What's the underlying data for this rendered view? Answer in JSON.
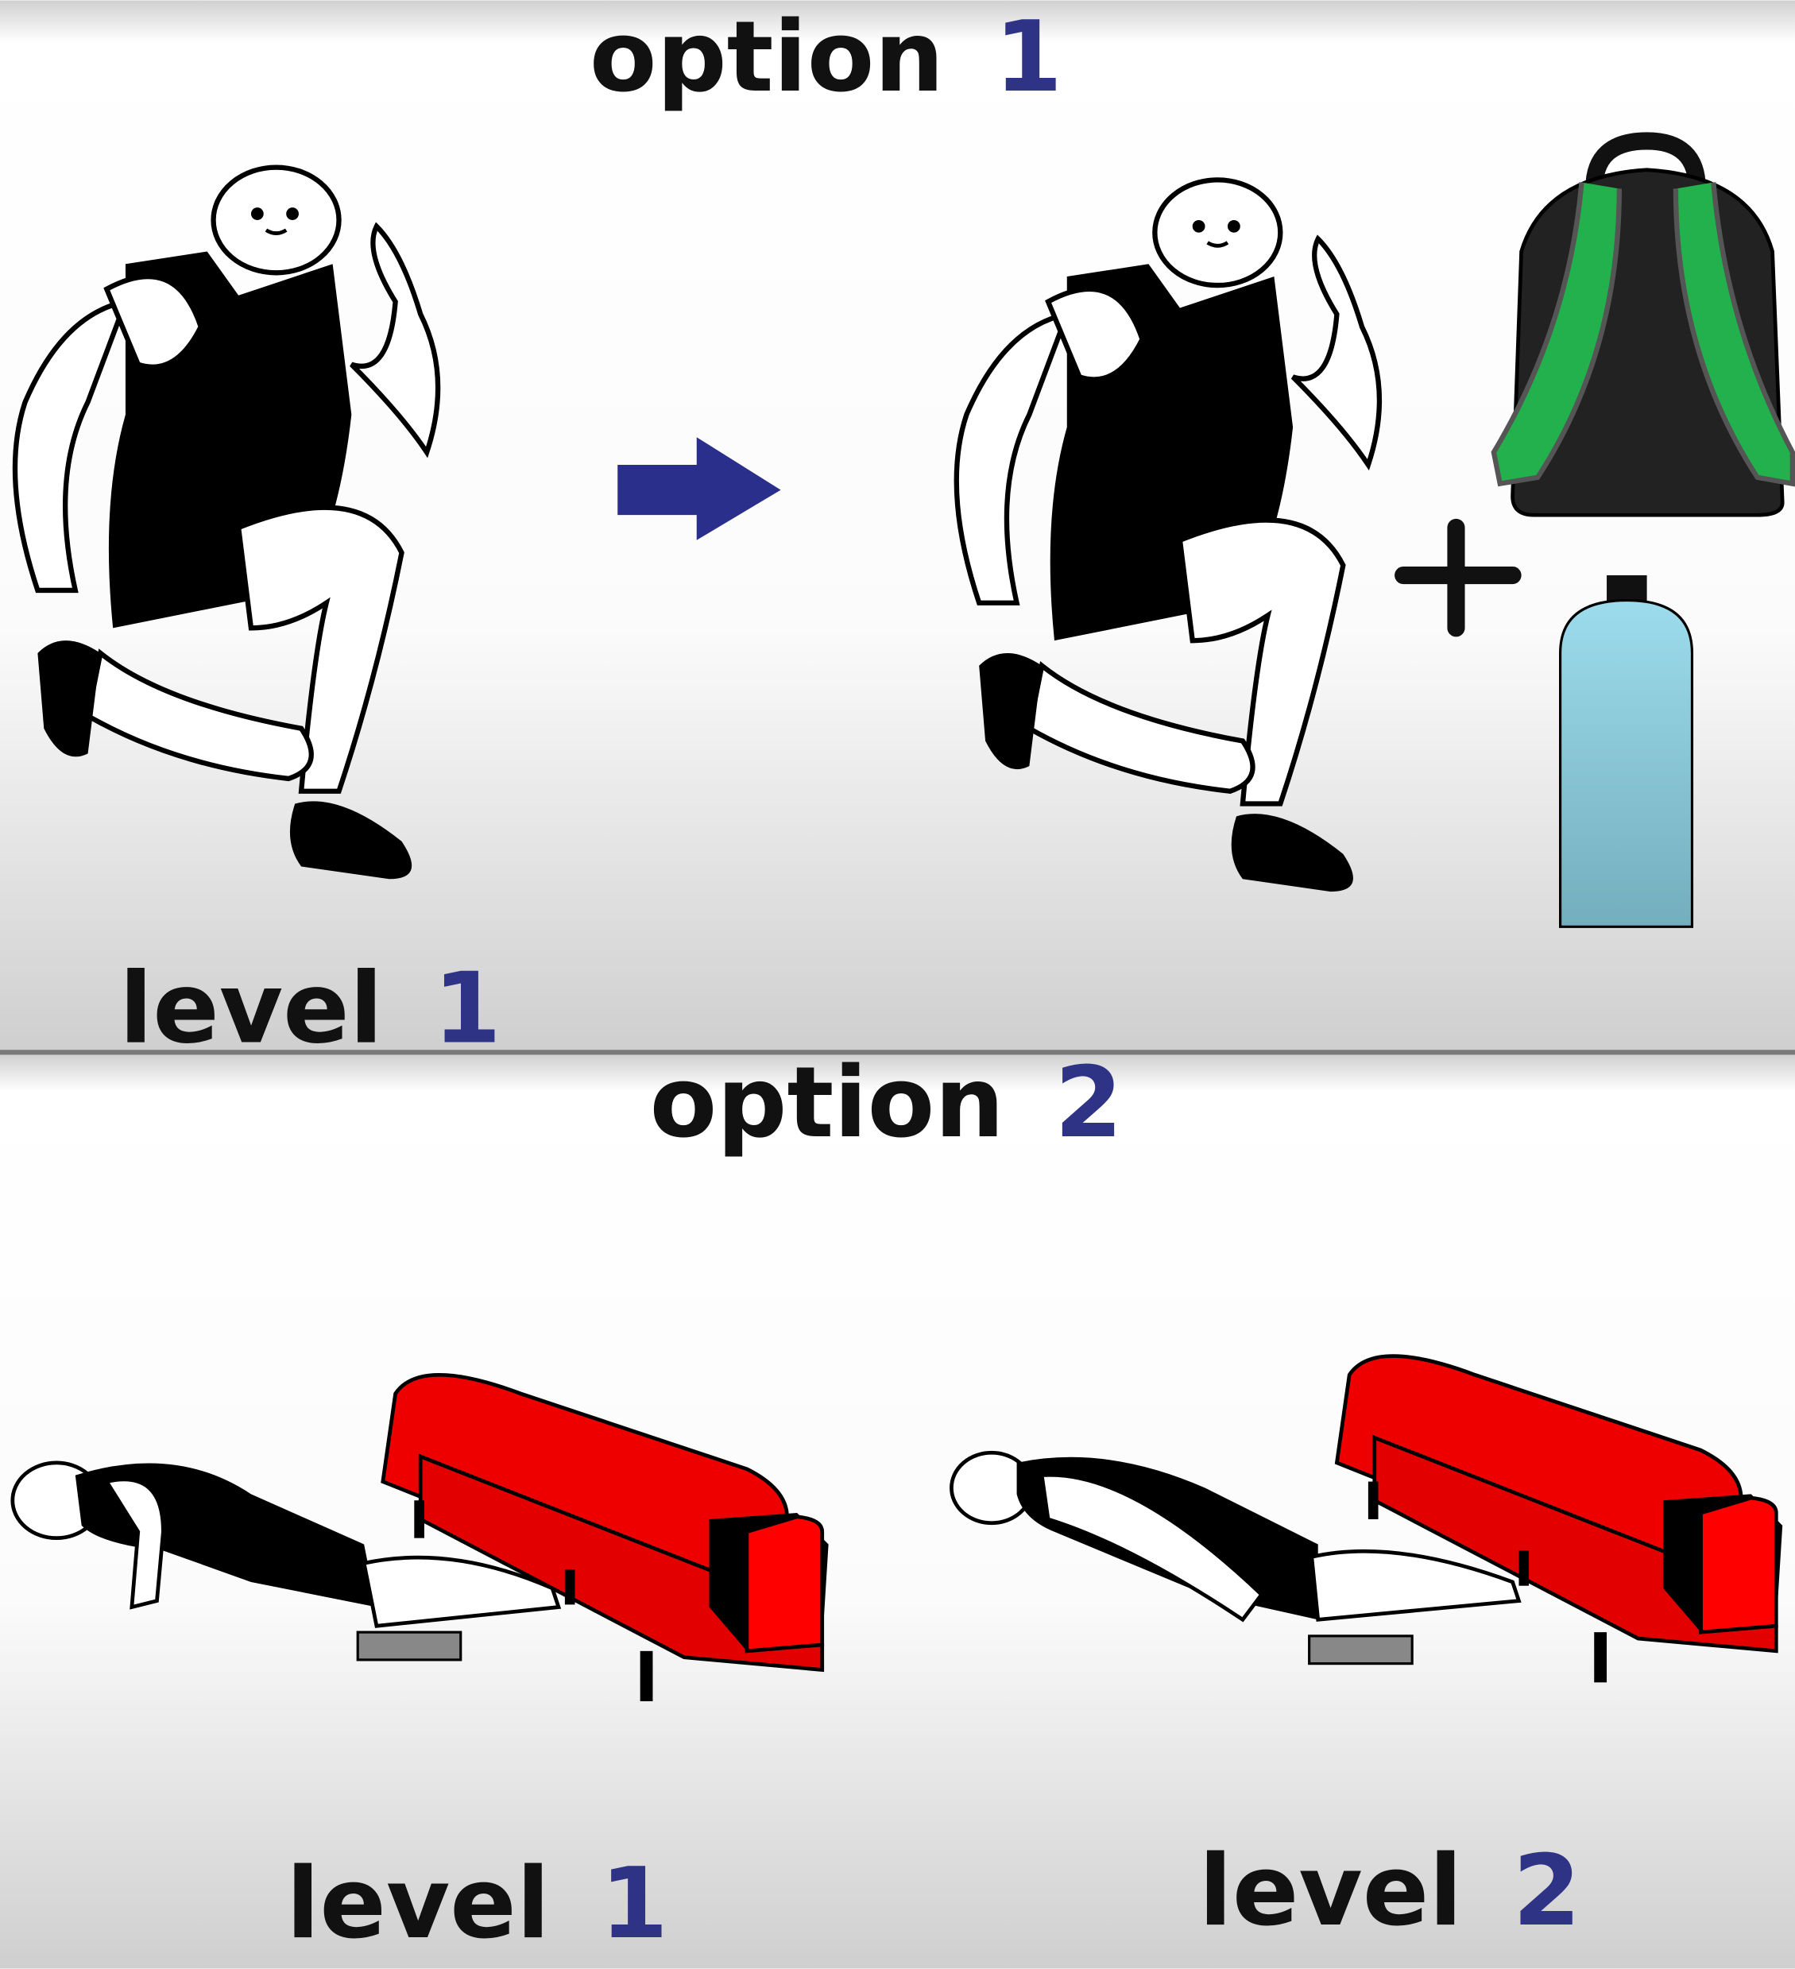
{
  "panels": [
    {
      "title": {
        "word": "option",
        "number": "1"
      },
      "labels": [
        {
          "word": "level",
          "number": "1"
        }
      ]
    },
    {
      "title": {
        "word": "option",
        "number": "2"
      },
      "labels": [
        {
          "word": "level",
          "number": "1"
        },
        {
          "word": "level",
          "number": "2"
        }
      ]
    }
  ]
}
